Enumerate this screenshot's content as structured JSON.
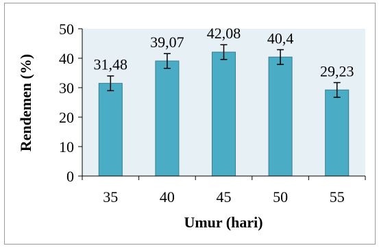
{
  "chart_data": {
    "type": "bar",
    "categories": [
      "35",
      "40",
      "45",
      "50",
      "55"
    ],
    "values": [
      31.48,
      39.07,
      42.08,
      40.4,
      29.23
    ],
    "data_labels": [
      "31,48",
      "39,07",
      "42,08",
      "40,4",
      "29,23"
    ],
    "error": [
      2.5,
      2.5,
      2.5,
      2.5,
      2.5
    ],
    "xlabel": "Umur (hari)",
    "ylabel": "Rendemen (%)",
    "ylim": [
      0,
      50
    ],
    "yticks": [
      0,
      10,
      20,
      30,
      40,
      50
    ],
    "ytick_labels": [
      "0",
      "10",
      "20",
      "30",
      "40",
      "50"
    ],
    "grid": false,
    "colors": {
      "bar": "#4bacc6",
      "bar_edge": "#357d91",
      "plot_background": "#e7f0f5",
      "axis": "#000000",
      "frame": "#9a9a9a"
    }
  }
}
